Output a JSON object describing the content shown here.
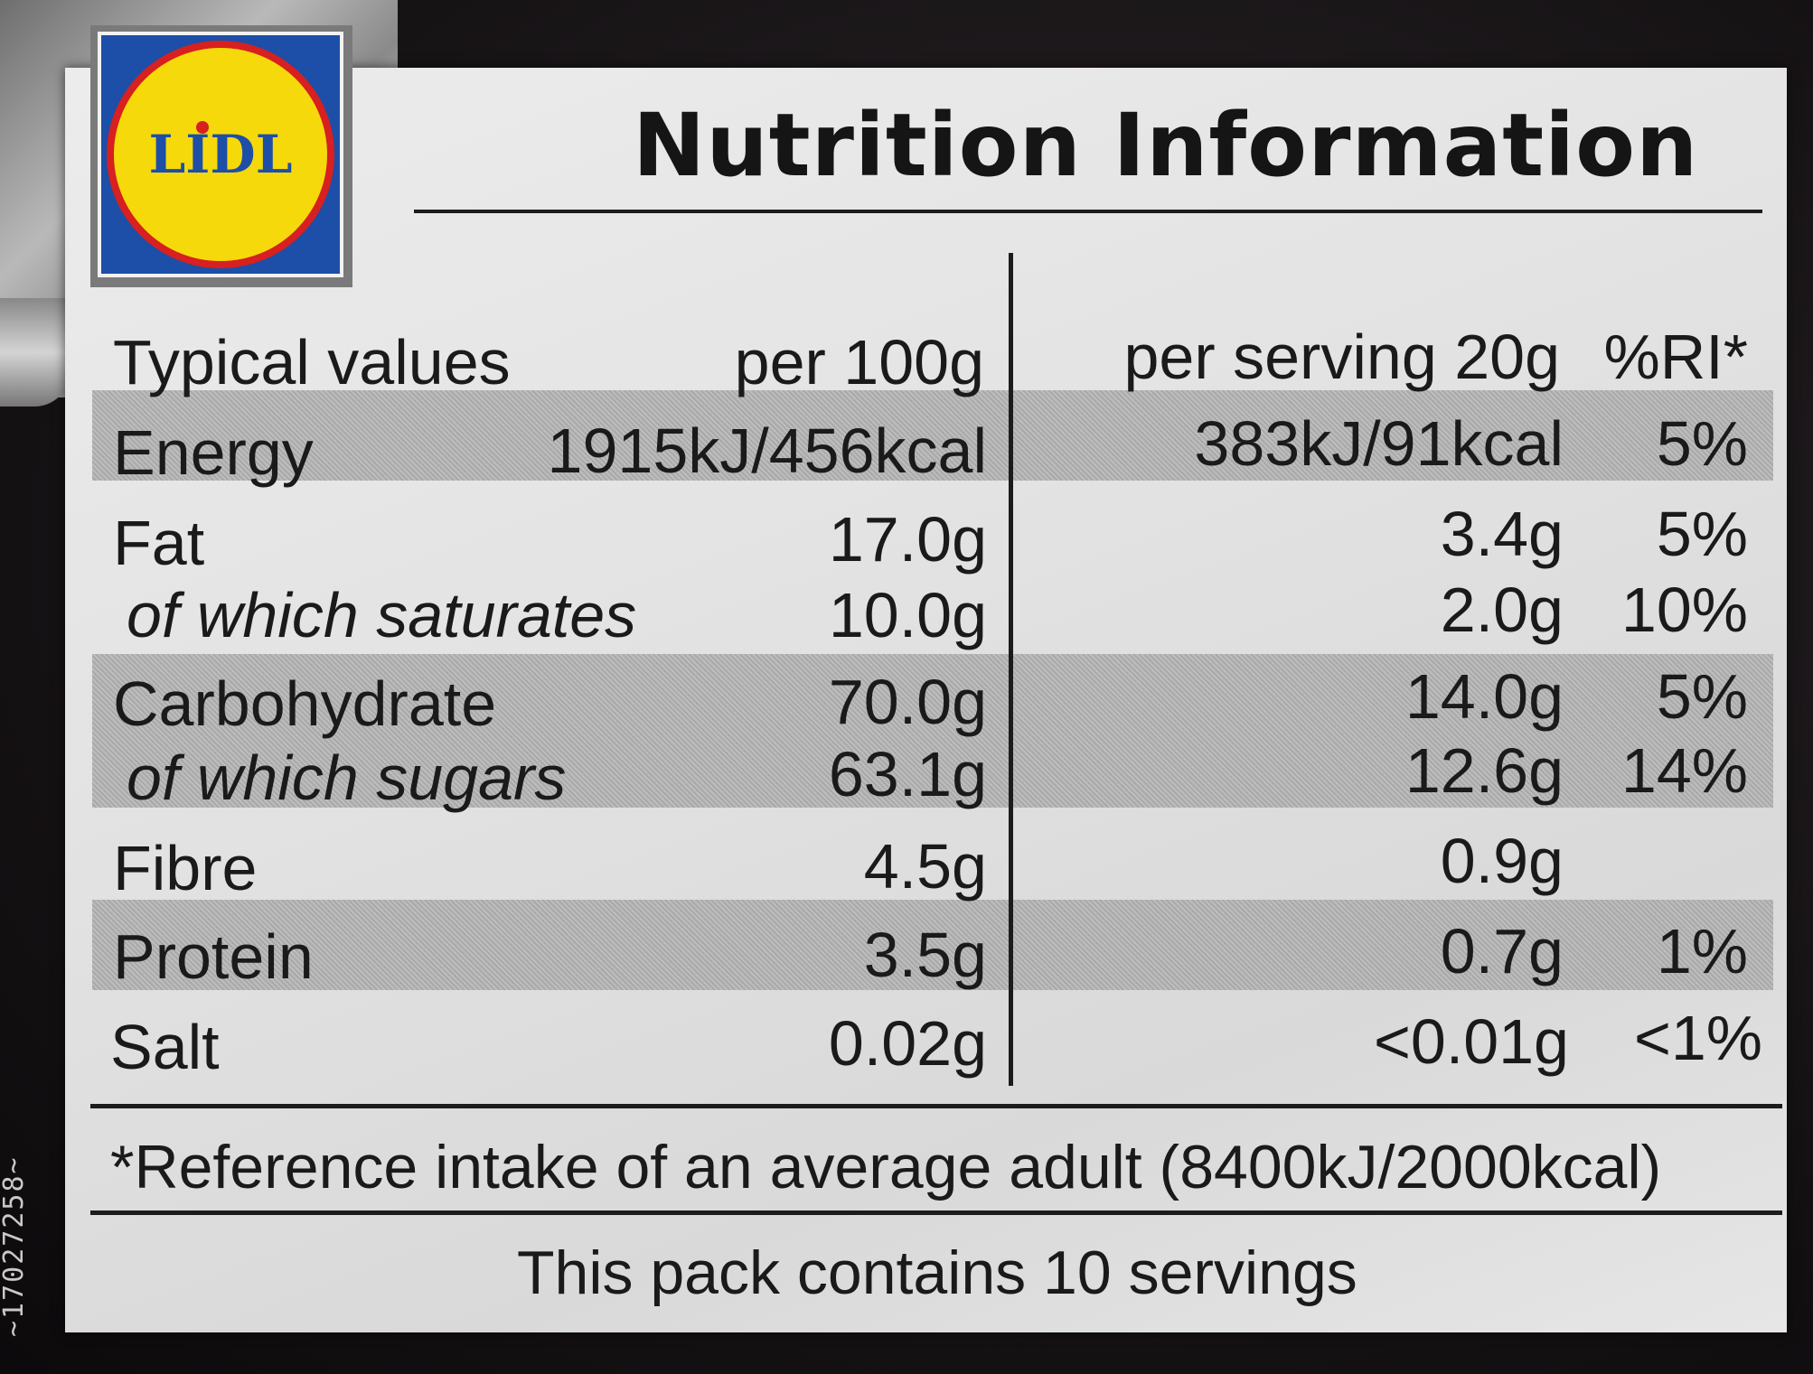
{
  "logo": {
    "brand": "LIDL",
    "colors": {
      "blue": "#1d4ea8",
      "yellow": "#f5d90a",
      "red": "#d7201f"
    }
  },
  "title": "Nutrition Information",
  "header": {
    "typical_values": "Typical values",
    "per_100g": "per 100g",
    "per_serving": "per serving 20g",
    "ri": "%RI*"
  },
  "rows": [
    {
      "name": "Energy",
      "per100": "1915kJ/456kcal",
      "serving": "383kJ/91kcal",
      "ri": "5%"
    },
    {
      "name": "Fat",
      "per100": "17.0g",
      "serving": "3.4g",
      "ri": "5%"
    },
    {
      "name": "of which saturates",
      "per100": "10.0g",
      "serving": "2.0g",
      "ri": "10%"
    },
    {
      "name": "Carbohydrate",
      "per100": "70.0g",
      "serving": "14.0g",
      "ri": "5%"
    },
    {
      "name": "of which sugars",
      "per100": "63.1g",
      "serving": "12.6g",
      "ri": "14%"
    },
    {
      "name": "Fibre",
      "per100": "4.5g",
      "serving": "0.9g",
      "ri": ""
    },
    {
      "name": "Protein",
      "per100": "3.5g",
      "serving": "0.7g",
      "ri": "1%"
    },
    {
      "name": "Salt",
      "per100": "0.02g",
      "serving": "<0.01g",
      "ri": "<1%"
    }
  ],
  "reference_note": "*Reference intake of an average adult (8400kJ/2000kcal)",
  "servings_note": "This pack contains 10 servings",
  "side_code": "~17027258~"
}
